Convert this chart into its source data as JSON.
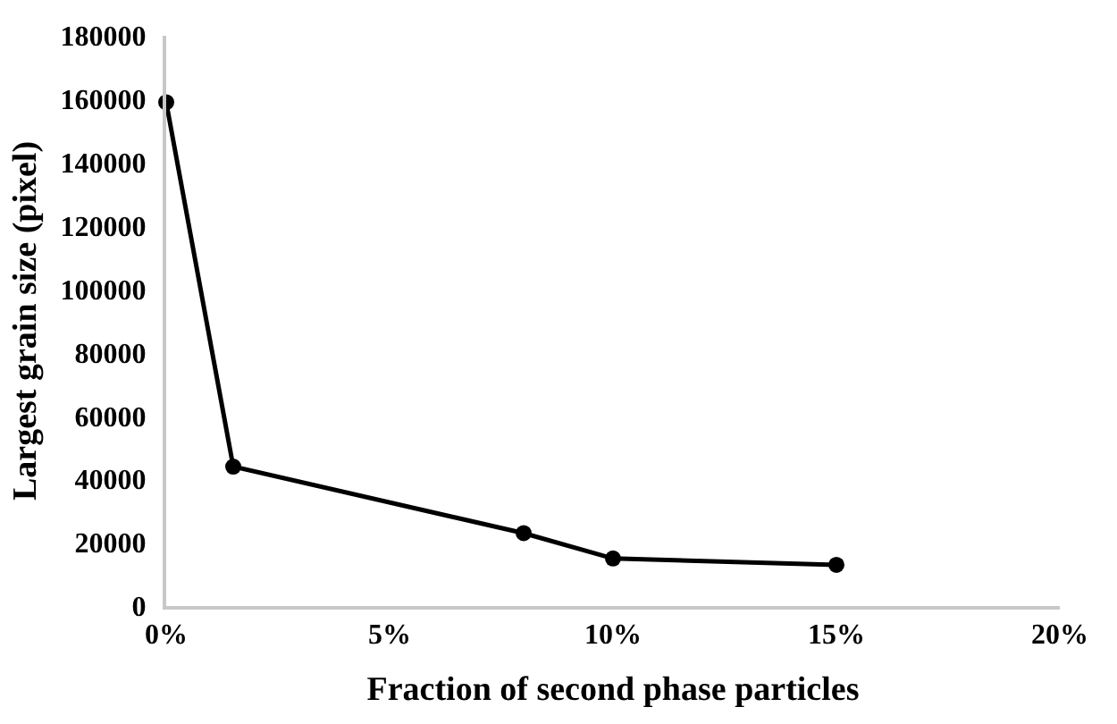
{
  "chart_data": {
    "type": "line",
    "xlabel": "Fraction of second phase particles",
    "ylabel": "Largest grain size (pixel)",
    "x": [
      0,
      1.5,
      8,
      10,
      15
    ],
    "series": [
      {
        "color": "#000000",
        "values": [
          159000,
          44000,
          23000,
          15000,
          13000
        ]
      }
    ],
    "xlim": [
      0,
      20
    ],
    "xticks": [
      {
        "value": 0,
        "label": "0%"
      },
      {
        "value": 5,
        "label": "5%"
      },
      {
        "value": 10,
        "label": "10%"
      },
      {
        "value": 15,
        "label": "15%"
      },
      {
        "value": 20,
        "label": "20%"
      }
    ],
    "ylim": [
      0,
      180000
    ],
    "yticks": [
      0,
      20000,
      40000,
      60000,
      80000,
      100000,
      120000,
      140000,
      160000,
      180000
    ],
    "legend": false,
    "marker": "circle",
    "line_style": "solid"
  }
}
